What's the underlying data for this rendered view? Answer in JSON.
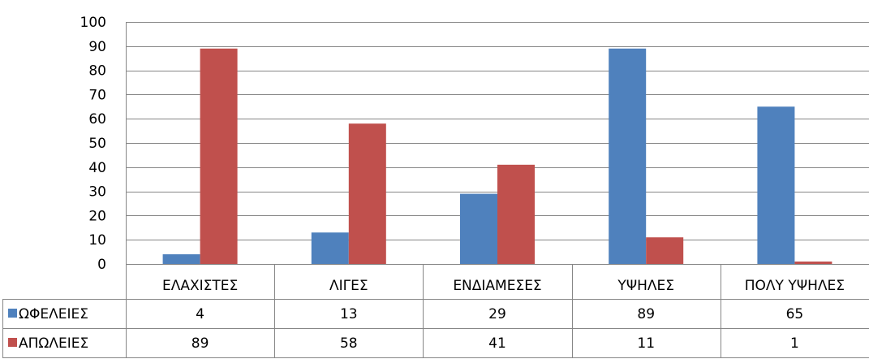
{
  "chart_data": {
    "type": "bar",
    "title": "",
    "xlabel": "",
    "ylabel": "",
    "ylim": [
      0,
      100
    ],
    "yticks": [
      0,
      10,
      20,
      30,
      40,
      50,
      60,
      70,
      80,
      90,
      100
    ],
    "categories": [
      "ΕΛΑΧΙΣΤΕΣ",
      "ΛΙΓΕΣ",
      "ΕΝΔΙΑΜΕΣΕΣ",
      "ΥΨΗΛΕΣ",
      "ΠΟΛΥ ΥΨΗΛΕΣ"
    ],
    "series": [
      {
        "name": "ΩΦΕΛΕΙΕΣ",
        "color": "#4f81bd",
        "values": [
          4,
          13,
          29,
          89,
          65
        ]
      },
      {
        "name": "ΑΠΩΛΕΙΕΣ",
        "color": "#c0504d",
        "values": [
          89,
          58,
          41,
          11,
          1
        ]
      }
    ],
    "grid": true,
    "legend": "data-table"
  }
}
